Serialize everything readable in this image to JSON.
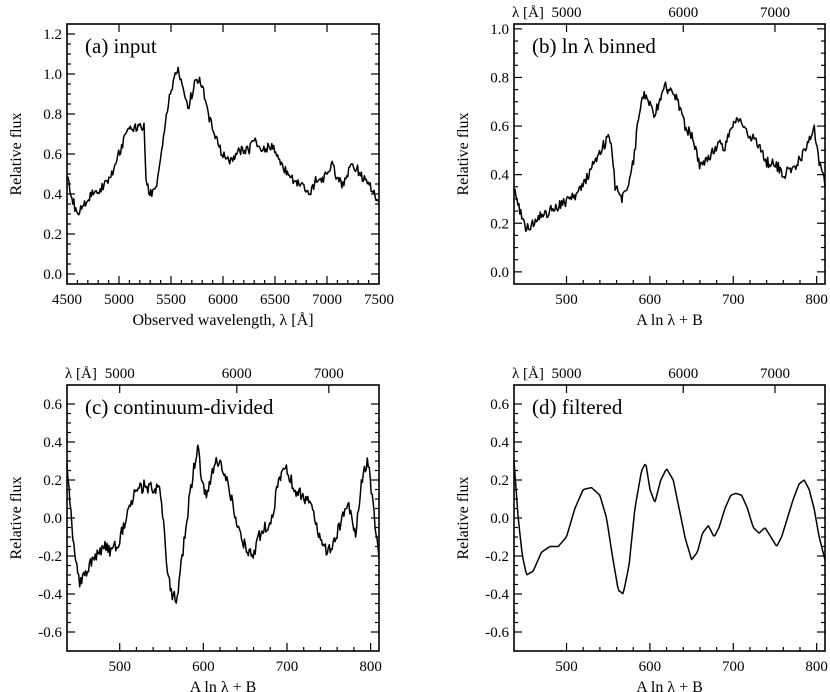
{
  "chart_data": [
    {
      "type": "line",
      "id": "a",
      "panel_label": "(a) input",
      "ylabel": "Relative flux",
      "xlabel": "Observed wavelength, λ [Å]",
      "xlim": [
        4500,
        7500
      ],
      "ylim": [
        -0.05,
        1.25
      ],
      "xticks": [
        4500,
        5000,
        5500,
        6000,
        6500,
        7000,
        7500
      ],
      "xtick_labels": [
        "4500",
        "5000",
        "5500",
        "6000",
        "6500",
        "7000",
        "7500"
      ],
      "yticks": [
        0.0,
        0.2,
        0.4,
        0.6,
        0.8,
        1.0,
        1.2
      ],
      "ytick_labels": [
        "0.0",
        "0.2",
        "0.4",
        "0.6",
        "0.8",
        "1.0",
        "1.2"
      ],
      "top_axis": null,
      "noise": 0.025,
      "series": [
        {
          "name": "input spectrum",
          "x": [
            4500,
            4560,
            4600,
            4650,
            4700,
            4750,
            4800,
            4850,
            4900,
            4950,
            5000,
            5050,
            5100,
            5150,
            5200,
            5240,
            5260,
            5290,
            5320,
            5350,
            5380,
            5420,
            5460,
            5500,
            5540,
            5570,
            5600,
            5630,
            5660,
            5700,
            5730,
            5760,
            5790,
            5820,
            5860,
            5900,
            5950,
            6000,
            6050,
            6100,
            6150,
            6200,
            6250,
            6300,
            6350,
            6400,
            6450,
            6500,
            6550,
            6600,
            6650,
            6700,
            6750,
            6800,
            6850,
            6900,
            6950,
            7000,
            7050,
            7100,
            7150,
            7200,
            7250,
            7300,
            7350,
            7400,
            7450,
            7500
          ],
          "y": [
            0.5,
            0.36,
            0.3,
            0.34,
            0.38,
            0.4,
            0.42,
            0.44,
            0.47,
            0.52,
            0.6,
            0.68,
            0.72,
            0.73,
            0.74,
            0.74,
            0.48,
            0.4,
            0.4,
            0.42,
            0.5,
            0.66,
            0.8,
            0.92,
            0.98,
            1.02,
            0.98,
            0.92,
            0.83,
            0.9,
            0.96,
            0.97,
            0.95,
            0.9,
            0.8,
            0.72,
            0.66,
            0.59,
            0.56,
            0.58,
            0.62,
            0.62,
            0.62,
            0.66,
            0.64,
            0.62,
            0.64,
            0.62,
            0.56,
            0.52,
            0.48,
            0.47,
            0.45,
            0.42,
            0.42,
            0.48,
            0.47,
            0.5,
            0.55,
            0.48,
            0.45,
            0.5,
            0.55,
            0.52,
            0.48,
            0.45,
            0.4,
            0.38
          ]
        }
      ]
    },
    {
      "type": "line",
      "id": "b",
      "panel_label": "(b) ln λ binned",
      "ylabel": "Relative flux",
      "xlabel": "A ln λ + B",
      "xlim": [
        437,
        810
      ],
      "ylim": [
        -0.05,
        1.02
      ],
      "xticks": [
        500,
        600,
        700,
        800
      ],
      "xtick_labels": [
        "500",
        "600",
        "700",
        "800"
      ],
      "yticks": [
        0.0,
        0.2,
        0.4,
        0.6,
        0.8,
        1.0
      ],
      "ytick_labels": [
        "0.0",
        "0.2",
        "0.4",
        "0.6",
        "0.8",
        "1.0"
      ],
      "top_axis": {
        "label": "λ [Å]",
        "ticks": [
          500,
          640,
          750
        ],
        "labels": [
          "5000",
          "6000",
          "7000"
        ]
      },
      "noise": 0.022,
      "series": [
        {
          "name": "binned spectrum",
          "x": [
            437,
            445,
            452,
            460,
            470,
            480,
            490,
            500,
            510,
            520,
            530,
            540,
            548,
            553,
            558,
            565,
            572,
            580,
            586,
            592,
            596,
            600,
            606,
            612,
            618,
            624,
            630,
            636,
            642,
            650,
            660,
            670,
            680,
            690,
            700,
            710,
            720,
            730,
            740,
            750,
            760,
            770,
            780,
            790,
            797,
            803,
            810
          ],
          "y": [
            0.34,
            0.24,
            0.18,
            0.2,
            0.23,
            0.25,
            0.27,
            0.29,
            0.31,
            0.36,
            0.43,
            0.5,
            0.54,
            0.55,
            0.36,
            0.3,
            0.32,
            0.45,
            0.62,
            0.72,
            0.73,
            0.69,
            0.65,
            0.7,
            0.76,
            0.75,
            0.73,
            0.68,
            0.6,
            0.56,
            0.44,
            0.47,
            0.52,
            0.52,
            0.62,
            0.62,
            0.56,
            0.52,
            0.45,
            0.45,
            0.4,
            0.42,
            0.46,
            0.53,
            0.59,
            0.45,
            0.36
          ]
        }
      ]
    },
    {
      "type": "line",
      "id": "c",
      "panel_label": "(c) continuum-divided",
      "ylabel": "Relative flux",
      "xlabel": "A ln λ + B",
      "xlim": [
        437,
        810
      ],
      "ylim": [
        -0.7,
        0.7
      ],
      "xticks": [
        500,
        600,
        700,
        800
      ],
      "xtick_labels": [
        "500",
        "600",
        "700",
        "800"
      ],
      "yticks": [
        -0.6,
        -0.4,
        -0.2,
        0.0,
        0.2,
        0.4,
        0.6
      ],
      "ytick_labels": [
        "-0.6",
        "-0.4",
        "-0.2",
        "0.0",
        "0.2",
        "0.4",
        "0.6"
      ],
      "top_axis": {
        "label": "λ [Å]",
        "ticks": [
          500,
          640,
          750
        ],
        "labels": [
          "5000",
          "6000",
          "7000"
        ]
      },
      "noise": 0.035,
      "series": [
        {
          "name": "continuum-divided spectrum",
          "x": [
            437,
            445,
            452,
            460,
            470,
            480,
            490,
            500,
            510,
            520,
            530,
            540,
            548,
            553,
            557,
            562,
            568,
            575,
            582,
            588,
            593,
            598,
            603,
            608,
            614,
            620,
            626,
            632,
            640,
            650,
            660,
            670,
            680,
            690,
            700,
            710,
            720,
            730,
            740,
            750,
            758,
            766,
            774,
            782,
            790,
            797,
            803,
            810
          ],
          "y": [
            0.3,
            -0.15,
            -0.35,
            -0.28,
            -0.2,
            -0.15,
            -0.18,
            -0.12,
            0.05,
            0.15,
            0.17,
            0.15,
            0.18,
            -0.05,
            -0.28,
            -0.4,
            -0.42,
            -0.2,
            0.05,
            0.25,
            0.38,
            0.2,
            0.12,
            0.2,
            0.3,
            0.27,
            0.22,
            0.12,
            -0.02,
            -0.15,
            -0.2,
            -0.05,
            -0.05,
            0.2,
            0.25,
            0.15,
            0.12,
            0.05,
            -0.12,
            -0.18,
            -0.1,
            0.0,
            0.05,
            -0.08,
            0.22,
            0.3,
            0.05,
            -0.2
          ]
        }
      ]
    },
    {
      "type": "line",
      "id": "d",
      "panel_label": "(d) filtered",
      "ylabel": "Relative flux",
      "xlabel": "A ln λ + B",
      "xlim": [
        437,
        810
      ],
      "ylim": [
        -0.7,
        0.7
      ],
      "xticks": [
        500,
        600,
        700,
        800
      ],
      "xtick_labels": [
        "500",
        "600",
        "700",
        "800"
      ],
      "yticks": [
        -0.6,
        -0.4,
        -0.2,
        0.0,
        0.2,
        0.4,
        0.6
      ],
      "ytick_labels": [
        "-0.6",
        "-0.4",
        "-0.2",
        "0.0",
        "0.2",
        "0.4",
        "0.6"
      ],
      "top_axis": {
        "label": "λ [Å]",
        "ticks": [
          500,
          640,
          750
        ],
        "labels": [
          "5000",
          "6000",
          "7000"
        ]
      },
      "noise": 0,
      "series": [
        {
          "name": "filtered spectrum",
          "x": [
            437,
            442,
            447,
            452,
            460,
            470,
            480,
            490,
            500,
            510,
            520,
            530,
            540,
            548,
            555,
            562,
            568,
            575,
            582,
            590,
            595,
            600,
            606,
            613,
            620,
            628,
            635,
            642,
            650,
            657,
            663,
            670,
            677,
            683,
            690,
            697,
            703,
            710,
            717,
            724,
            731,
            738,
            745,
            752,
            758,
            765,
            772,
            779,
            785,
            791,
            797,
            803,
            810
          ],
          "y": [
            0.3,
            0.0,
            -0.2,
            -0.3,
            -0.28,
            -0.18,
            -0.15,
            -0.15,
            -0.1,
            0.05,
            0.15,
            0.16,
            0.12,
            0.0,
            -0.2,
            -0.38,
            -0.4,
            -0.25,
            0.05,
            0.25,
            0.29,
            0.15,
            0.08,
            0.2,
            0.26,
            0.2,
            0.05,
            -0.1,
            -0.22,
            -0.18,
            -0.08,
            -0.04,
            -0.1,
            -0.05,
            0.05,
            0.12,
            0.13,
            0.12,
            0.05,
            -0.05,
            -0.08,
            -0.05,
            -0.1,
            -0.15,
            -0.1,
            0.0,
            0.1,
            0.18,
            0.2,
            0.15,
            0.05,
            -0.1,
            -0.22
          ]
        }
      ]
    }
  ]
}
